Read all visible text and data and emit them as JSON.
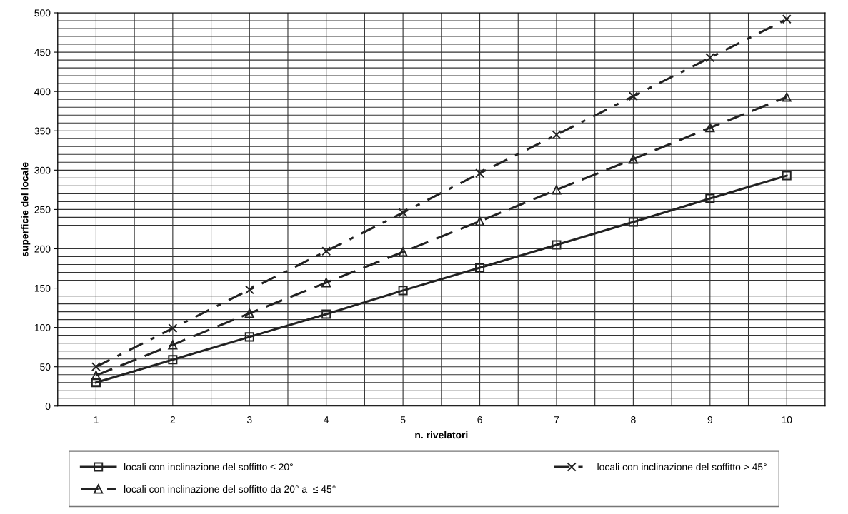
{
  "chart_data": {
    "type": "line",
    "xlabel": "n. rivelatori",
    "ylabel": "superficie del locale",
    "categories": [
      "1",
      "2",
      "3",
      "4",
      "5",
      "6",
      "7",
      "8",
      "9",
      "10"
    ],
    "series": [
      {
        "name": "locali con inclinazione del soffitto ≤ 20°",
        "color": "#222222",
        "marker": "square",
        "line_style": "solid",
        "values": [
          30,
          59,
          88,
          117,
          147,
          176,
          205,
          234,
          264,
          293
        ]
      },
      {
        "name": "locali con inclinazione del soffitto da 20° a  ≤ 45°",
        "color": "#222222",
        "marker": "triangle",
        "line_style": "dashed",
        "values": [
          39,
          78,
          118,
          157,
          196,
          235,
          275,
          314,
          354,
          393
        ]
      },
      {
        "name": "locali con inclinazione del soffitto > 45°",
        "color": "#222222",
        "marker": "cross",
        "line_style": "dotted",
        "values": [
          50,
          99,
          148,
          197,
          246,
          296,
          345,
          394,
          443,
          492
        ]
      }
    ],
    "ylim": [
      0,
      500
    ],
    "yticks": [
      0,
      {
        "value": 10,
        "label": null
      },
      {
        "value": 20,
        "label": null
      },
      {
        "value": 30,
        "label": null
      },
      {
        "value": 40,
        "label": null
      },
      50,
      {
        "value": 60,
        "label": null
      },
      {
        "value": 70,
        "label": null
      },
      {
        "value": 80,
        "label": null
      },
      {
        "value": 90,
        "label": null
      },
      100,
      {
        "value": 110,
        "label": null
      },
      {
        "value": 120,
        "label": null
      },
      {
        "value": 130,
        "label": null
      },
      {
        "value": 140,
        "label": null
      },
      150,
      {
        "value": 160,
        "label": null
      },
      {
        "value": 170,
        "label": null
      },
      {
        "value": 180,
        "label": null
      },
      {
        "value": 190,
        "label": null
      },
      200,
      {
        "value": 210,
        "label": null
      },
      {
        "value": 220,
        "label": null
      },
      {
        "value": 230,
        "label": null
      },
      {
        "value": 240,
        "label": null
      },
      250,
      {
        "value": 260,
        "label": null
      },
      {
        "value": 270,
        "label": null
      },
      {
        "value": 280,
        "label": null
      },
      {
        "value": 290,
        "label": null
      },
      300,
      {
        "value": 310,
        "label": null
      },
      {
        "value": 320,
        "label": null
      },
      {
        "value": 330,
        "label": null
      },
      {
        "value": 340,
        "label": null
      },
      350,
      {
        "value": 360,
        "label": null
      },
      {
        "value": 370,
        "label": null
      },
      {
        "value": 380,
        "label": null
      },
      {
        "value": 390,
        "label": null
      },
      400,
      {
        "value": 410,
        "label": null
      },
      {
        "value": 420,
        "label": null
      },
      {
        "value": 430,
        "label": null
      },
      {
        "value": 440,
        "label": null
      },
      450,
      {
        "value": 460,
        "label": null
      },
      {
        "value": 470,
        "label": null
      },
      {
        "value": 480,
        "label": null
      },
      {
        "value": 490,
        "label": null
      },
      500
    ],
    "grid": true,
    "legend": "bottom"
  }
}
